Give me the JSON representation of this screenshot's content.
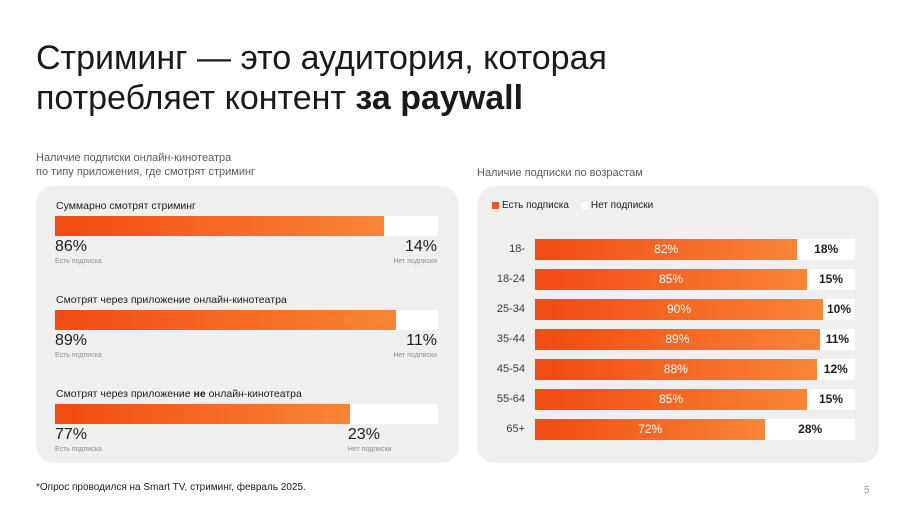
{
  "title": {
    "line1": "Стриминг — это аудитория, которая",
    "line2_regular": "потребляет контент ",
    "line2_bold": "за paywall"
  },
  "left": {
    "subtitle_line1": "Наличие подписки онлайн-кинотеатра",
    "subtitle_line2": "по типу приложения, где смотрят стриминг"
  },
  "right": {
    "subtitle": "Наличие подписки по возрастам"
  },
  "colors": {
    "accent_start": "#f24a12",
    "accent_end": "#f98535",
    "panel": "#efefef",
    "rest": "#ffffff"
  },
  "chart_data": [
    {
      "type": "bar",
      "orientation": "horizontal-stacked",
      "title": "Наличие подписки онлайн-кинотеатра по типу приложения, где смотрят стриминг",
      "groups": [
        {
          "label_pre": "Суммарно смотрят стриминг",
          "label_bold": "",
          "label_post": "",
          "with": 86,
          "without": 14,
          "with_text": "86%",
          "without_text": "14%",
          "with_caption": "Есть подписка",
          "without_caption": "Нет подписки"
        },
        {
          "label_pre": "Смотрят через приложение онлайн-кинотеатра",
          "label_bold": "",
          "label_post": "",
          "with": 89,
          "without": 11,
          "with_text": "89%",
          "without_text": "11%",
          "with_caption": "Есть подписка",
          "without_caption": "Нет подписки"
        },
        {
          "label_pre": "Смотрят через приложение ",
          "label_bold": "не",
          "label_post": " онлайн-кинотеатра",
          "with": 77,
          "without": 23,
          "with_text": "77%",
          "without_text": "23%",
          "with_caption": "Есть подписка",
          "without_caption": "Нет подписки"
        }
      ]
    },
    {
      "type": "bar",
      "orientation": "horizontal-stacked",
      "title": "Наличие подписки по возрастам",
      "legend": [
        {
          "name": "Есть подписка",
          "color": "#f4541a"
        },
        {
          "name": "Нет подписки",
          "color": "#ffffff"
        }
      ],
      "legend_position": "top-left",
      "categories": [
        "18-",
        "18-24",
        "25-34",
        "35-44",
        "45-54",
        "55-64",
        "65+"
      ],
      "series": [
        {
          "name": "Есть подписка",
          "values": [
            82,
            85,
            90,
            89,
            88,
            85,
            72
          ],
          "labels": [
            "82%",
            "85%",
            "90%",
            "89%",
            "88%",
            "85%",
            "72%"
          ]
        },
        {
          "name": "Нет подписки",
          "values": [
            18,
            15,
            10,
            11,
            12,
            15,
            28
          ],
          "labels": [
            "18%",
            "15%",
            "10%",
            "11%",
            "12%",
            "15%",
            "28%"
          ]
        }
      ]
    }
  ],
  "footnote": "*Опрос проводился на Smart TV, стриминг, февраль 2025.",
  "page_number": "5"
}
